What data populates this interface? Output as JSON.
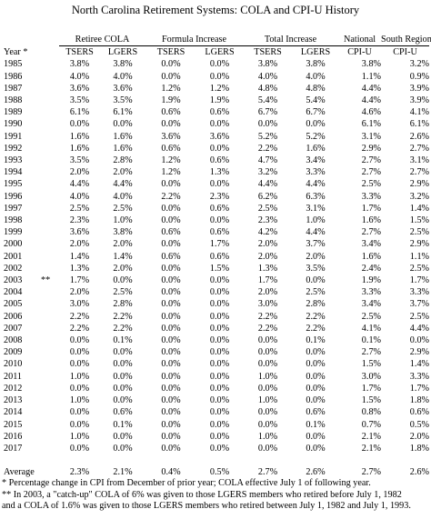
{
  "title": "North Carolina Retirement Systems: COLA and CPI-U History",
  "header": {
    "groups": [
      "Retiree COLA",
      "Formula Increase",
      "Total Increase",
      "National",
      "South Region"
    ],
    "year_label": "Year *",
    "subs": [
      "TSERS",
      "LGERS",
      "TSERS",
      "LGERS",
      "TSERS",
      "LGERS",
      "CPI-U",
      "CPI-U"
    ]
  },
  "rows": [
    {
      "year": "1985",
      "mark": "",
      "v": [
        "3.8%",
        "3.8%",
        "0.0%",
        "0.0%",
        "3.8%",
        "3.8%",
        "3.8%",
        "3.2%"
      ]
    },
    {
      "year": "1986",
      "mark": "",
      "v": [
        "4.0%",
        "4.0%",
        "0.0%",
        "0.0%",
        "4.0%",
        "4.0%",
        "1.1%",
        "0.9%"
      ]
    },
    {
      "year": "1987",
      "mark": "",
      "v": [
        "3.6%",
        "3.6%",
        "1.2%",
        "1.2%",
        "4.8%",
        "4.8%",
        "4.4%",
        "3.9%"
      ]
    },
    {
      "year": "1988",
      "mark": "",
      "v": [
        "3.5%",
        "3.5%",
        "1.9%",
        "1.9%",
        "5.4%",
        "5.4%",
        "4.4%",
        "3.9%"
      ]
    },
    {
      "year": "1989",
      "mark": "",
      "v": [
        "6.1%",
        "6.1%",
        "0.6%",
        "0.6%",
        "6.7%",
        "6.7%",
        "4.6%",
        "4.1%"
      ]
    },
    {
      "year": "1990",
      "mark": "",
      "v": [
        "0.0%",
        "0.0%",
        "0.0%",
        "0.0%",
        "0.0%",
        "0.0%",
        "6.1%",
        "6.1%"
      ]
    },
    {
      "year": "1991",
      "mark": "",
      "v": [
        "1.6%",
        "1.6%",
        "3.6%",
        "3.6%",
        "5.2%",
        "5.2%",
        "3.1%",
        "2.6%"
      ]
    },
    {
      "year": "1992",
      "mark": "",
      "v": [
        "1.6%",
        "1.6%",
        "0.6%",
        "0.0%",
        "2.2%",
        "1.6%",
        "2.9%",
        "2.7%"
      ]
    },
    {
      "year": "1993",
      "mark": "",
      "v": [
        "3.5%",
        "2.8%",
        "1.2%",
        "0.6%",
        "4.7%",
        "3.4%",
        "2.7%",
        "3.1%"
      ]
    },
    {
      "year": "1994",
      "mark": "",
      "v": [
        "2.0%",
        "2.0%",
        "1.2%",
        "1.3%",
        "3.2%",
        "3.3%",
        "2.7%",
        "2.7%"
      ]
    },
    {
      "year": "1995",
      "mark": "",
      "v": [
        "4.4%",
        "4.4%",
        "0.0%",
        "0.0%",
        "4.4%",
        "4.4%",
        "2.5%",
        "2.9%"
      ]
    },
    {
      "year": "1996",
      "mark": "",
      "v": [
        "4.0%",
        "4.0%",
        "2.2%",
        "2.3%",
        "6.2%",
        "6.3%",
        "3.3%",
        "3.2%"
      ]
    },
    {
      "year": "1997",
      "mark": "",
      "v": [
        "2.5%",
        "2.5%",
        "0.0%",
        "0.6%",
        "2.5%",
        "3.1%",
        "1.7%",
        "1.4%"
      ]
    },
    {
      "year": "1998",
      "mark": "",
      "v": [
        "2.3%",
        "1.0%",
        "0.0%",
        "0.0%",
        "2.3%",
        "1.0%",
        "1.6%",
        "1.5%"
      ]
    },
    {
      "year": "1999",
      "mark": "",
      "v": [
        "3.6%",
        "3.8%",
        "0.6%",
        "0.6%",
        "4.2%",
        "4.4%",
        "2.7%",
        "2.5%"
      ]
    },
    {
      "year": "2000",
      "mark": "",
      "v": [
        "2.0%",
        "2.0%",
        "0.0%",
        "1.7%",
        "2.0%",
        "3.7%",
        "3.4%",
        "2.9%"
      ]
    },
    {
      "year": "2001",
      "mark": "",
      "v": [
        "1.4%",
        "1.4%",
        "0.6%",
        "0.6%",
        "2.0%",
        "2.0%",
        "1.6%",
        "1.1%"
      ]
    },
    {
      "year": "2002",
      "mark": "",
      "v": [
        "1.3%",
        "2.0%",
        "0.0%",
        "1.5%",
        "1.3%",
        "3.5%",
        "2.4%",
        "2.5%"
      ]
    },
    {
      "year": "2003",
      "mark": "**",
      "v": [
        "1.7%",
        "0.0%",
        "0.0%",
        "0.0%",
        "1.7%",
        "0.0%",
        "1.9%",
        "1.7%"
      ]
    },
    {
      "year": "2004",
      "mark": "",
      "v": [
        "2.0%",
        "2.5%",
        "0.0%",
        "0.0%",
        "2.0%",
        "2.5%",
        "3.3%",
        "3.3%"
      ]
    },
    {
      "year": "2005",
      "mark": "",
      "v": [
        "3.0%",
        "2.8%",
        "0.0%",
        "0.0%",
        "3.0%",
        "2.8%",
        "3.4%",
        "3.7%"
      ]
    },
    {
      "year": "2006",
      "mark": "",
      "v": [
        "2.2%",
        "2.2%",
        "0.0%",
        "0.0%",
        "2.2%",
        "2.2%",
        "2.5%",
        "2.5%"
      ]
    },
    {
      "year": "2007",
      "mark": "",
      "v": [
        "2.2%",
        "2.2%",
        "0.0%",
        "0.0%",
        "2.2%",
        "2.2%",
        "4.1%",
        "4.4%"
      ]
    },
    {
      "year": "2008",
      "mark": "",
      "v": [
        "0.0%",
        "0.1%",
        "0.0%",
        "0.0%",
        "0.0%",
        "0.1%",
        "0.1%",
        "0.0%"
      ]
    },
    {
      "year": "2009",
      "mark": "",
      "v": [
        "0.0%",
        "0.0%",
        "0.0%",
        "0.0%",
        "0.0%",
        "0.0%",
        "2.7%",
        "2.9%"
      ]
    },
    {
      "year": "2010",
      "mark": "",
      "v": [
        "0.0%",
        "0.0%",
        "0.0%",
        "0.0%",
        "0.0%",
        "0.0%",
        "1.5%",
        "1.4%"
      ]
    },
    {
      "year": "2011",
      "mark": "",
      "v": [
        "1.0%",
        "0.0%",
        "0.0%",
        "0.0%",
        "1.0%",
        "0.0%",
        "3.0%",
        "3.3%"
      ]
    },
    {
      "year": "2012",
      "mark": "",
      "v": [
        "0.0%",
        "0.0%",
        "0.0%",
        "0.0%",
        "0.0%",
        "0.0%",
        "1.7%",
        "1.7%"
      ]
    },
    {
      "year": "2013",
      "mark": "",
      "v": [
        "1.0%",
        "0.0%",
        "0.0%",
        "0.0%",
        "1.0%",
        "0.0%",
        "1.5%",
        "1.8%"
      ]
    },
    {
      "year": "2014",
      "mark": "",
      "v": [
        "0.0%",
        "0.6%",
        "0.0%",
        "0.0%",
        "0.0%",
        "0.6%",
        "0.8%",
        "0.6%"
      ]
    },
    {
      "year": "2015",
      "mark": "",
      "v": [
        "0.0%",
        "0.1%",
        "0.0%",
        "0.0%",
        "0.0%",
        "0.1%",
        "0.7%",
        "0.5%"
      ]
    },
    {
      "year": "2016",
      "mark": "",
      "v": [
        "1.0%",
        "0.0%",
        "0.0%",
        "0.0%",
        "1.0%",
        "0.0%",
        "2.1%",
        "2.0%"
      ]
    },
    {
      "year": "2017",
      "mark": "",
      "v": [
        "0.0%",
        "0.0%",
        "0.0%",
        "0.0%",
        "0.0%",
        "0.0%",
        "2.1%",
        "1.8%"
      ]
    }
  ],
  "average": {
    "label": "Average",
    "v": [
      "2.3%",
      "2.1%",
      "0.4%",
      "0.5%",
      "2.7%",
      "2.6%",
      "2.7%",
      "2.6%"
    ]
  },
  "footnotes": [
    "* Percentage change in CPI from December of prior year; COLA effective July 1 of following year.",
    "** In 2003, a \"catch-up\" COLA of 6% was given to those LGERS members who retired before July 1, 1982",
    "and a COLA of 1.6% was given to those LGERS members who retired between July 1, 1982 and July 1, 1993."
  ]
}
